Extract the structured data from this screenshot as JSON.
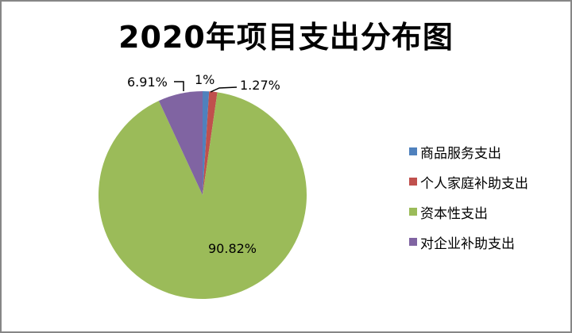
{
  "chart_data": {
    "type": "pie",
    "title": "2020年项目支出分布图",
    "categories": [
      "商品服务支出",
      "个人家庭补助支出",
      "资本性支出",
      "对企业补助支出"
    ],
    "values": [
      1.0,
      1.27,
      90.82,
      6.91
    ],
    "labels": [
      "1%",
      "1.27%",
      "90.82%",
      "6.91%"
    ],
    "colors": [
      "#4F81BD",
      "#C0504D",
      "#9BBB59",
      "#8064A2"
    ],
    "legend_position": "right"
  },
  "legend": [
    {
      "label": "商品服务支出",
      "color": "#4F81BD"
    },
    {
      "label": "个人家庭补助支出",
      "color": "#C0504D"
    },
    {
      "label": "资本性支出",
      "color": "#9BBB59"
    },
    {
      "label": "对企业补助支出",
      "color": "#8064A2"
    }
  ]
}
